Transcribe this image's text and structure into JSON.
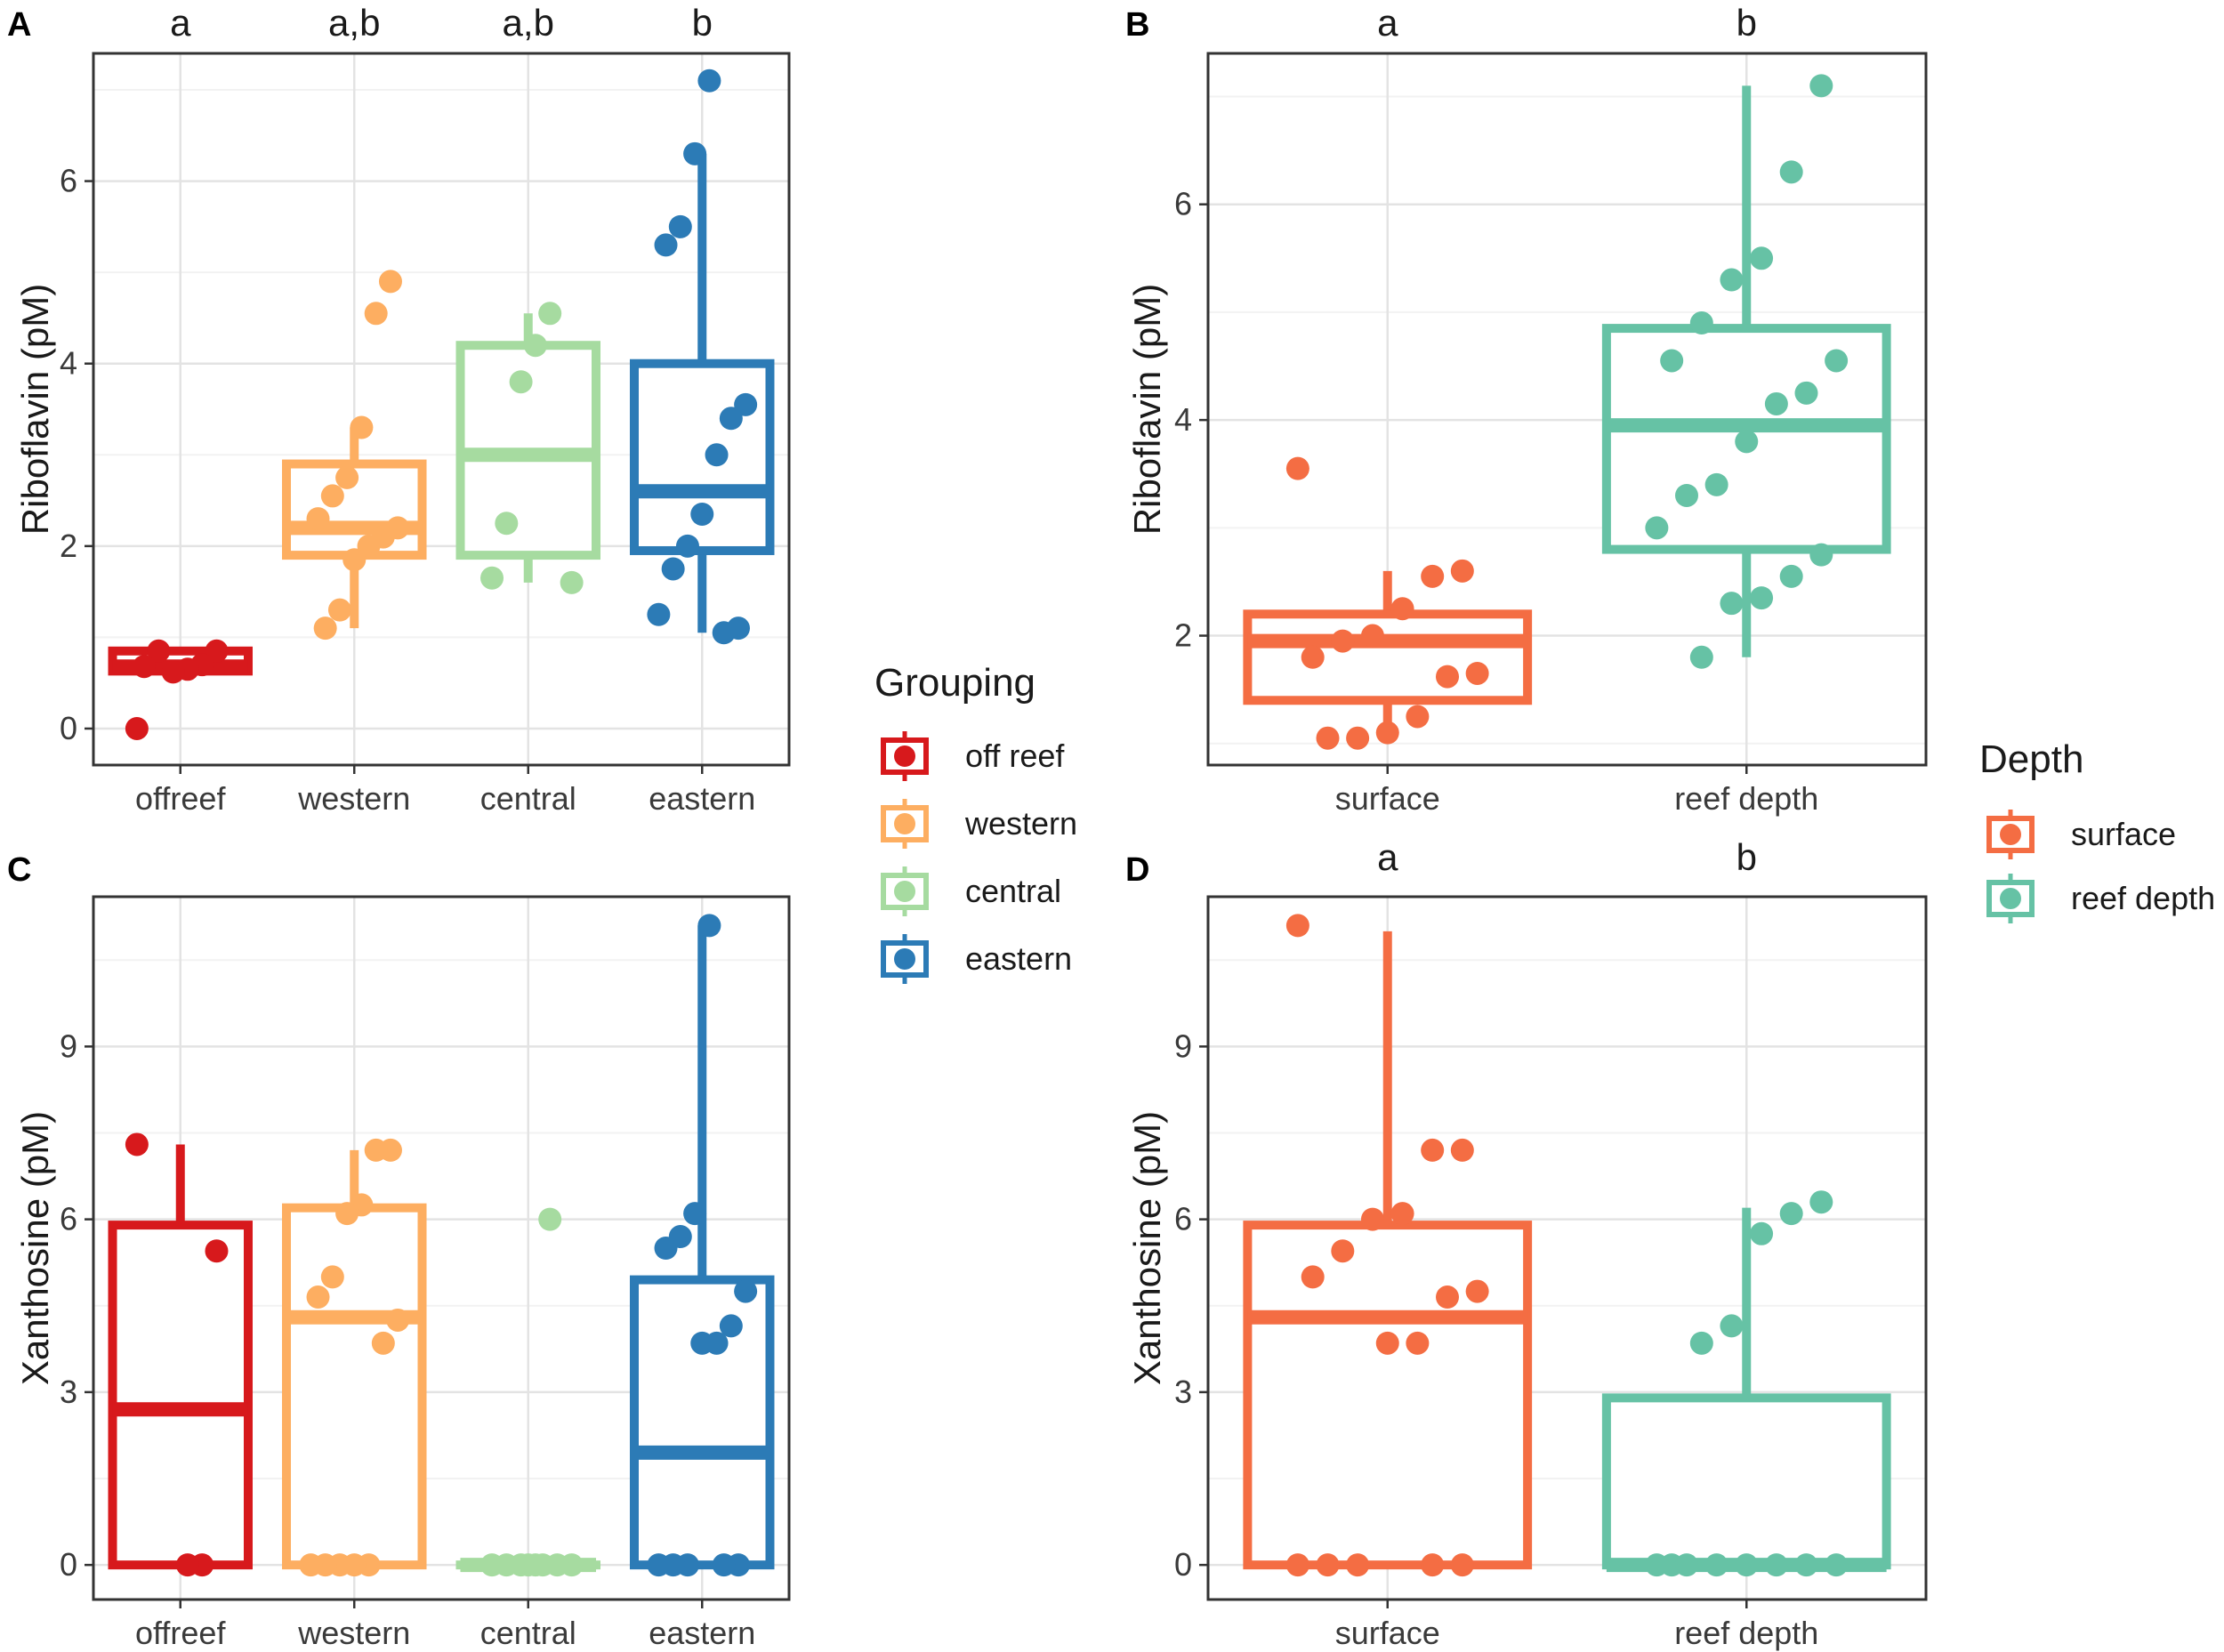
{
  "legends": {
    "grouping": {
      "title": "Grouping",
      "items": [
        {
          "label": "off reef",
          "color": "#d7191c"
        },
        {
          "label": "western",
          "color": "#fdae61"
        },
        {
          "label": "central",
          "color": "#a6dba0"
        },
        {
          "label": "eastern",
          "color": "#2c7bb6"
        }
      ]
    },
    "depth": {
      "title": "Depth",
      "items": [
        {
          "label": "surface",
          "color": "#f46d43"
        },
        {
          "label": "reef depth",
          "color": "#66c2a5"
        }
      ]
    }
  },
  "chart_data": [
    {
      "panel": "A",
      "type": "box",
      "ylabel": "Riboflavin (pM)",
      "ylim": [
        -0.4,
        7.4
      ],
      "yticks": [
        0,
        2,
        4,
        6
      ],
      "categories": [
        "offreef",
        "western",
        "central",
        "eastern"
      ],
      "colors": [
        "#d7191c",
        "#fdae61",
        "#a6dba0",
        "#2c7bb6"
      ],
      "sig_letters": [
        "a",
        "a,b",
        "a,b",
        "b"
      ],
      "boxes": [
        {
          "lw": 0.63,
          "q1": 0.63,
          "med": 0.68,
          "q3": 0.85,
          "uw": 0.85
        },
        {
          "lw": 1.1,
          "q1": 1.9,
          "med": 2.2,
          "q3": 2.9,
          "uw": 3.3
        },
        {
          "lw": 1.6,
          "q1": 1.9,
          "med": 3.0,
          "q3": 4.2,
          "uw": 4.55
        },
        {
          "lw": 1.05,
          "q1": 1.95,
          "med": 2.6,
          "q3": 4.0,
          "uw": 6.3
        }
      ],
      "points": [
        [
          0,
          0.85,
          0.7,
          0.65,
          0.62,
          0.85,
          0.68
        ],
        [
          4.9,
          4.55,
          3.3,
          2.75,
          2.55,
          2.3,
          2.2,
          2.1,
          2.0,
          1.85,
          1.3,
          1.1
        ],
        [
          4.55,
          4.2,
          3.8,
          2.25,
          1.65,
          1.6
        ],
        [
          7.1,
          6.3,
          5.5,
          5.3,
          3.55,
          3.4,
          3.0,
          2.35,
          2.0,
          1.75,
          1.25,
          1.1,
          1.05
        ]
      ]
    },
    {
      "panel": "B",
      "type": "box",
      "ylabel": "Riboflavin (pM)",
      "ylim": [
        0.8,
        7.4
      ],
      "yticks": [
        2,
        4,
        6
      ],
      "categories": [
        "surface",
        "reef depth"
      ],
      "colors": [
        "#f46d43",
        "#66c2a5"
      ],
      "sig_letters": [
        "a",
        "b"
      ],
      "boxes": [
        {
          "lw": 1.05,
          "q1": 1.4,
          "med": 1.95,
          "q3": 2.2,
          "uw": 2.6
        },
        {
          "lw": 1.8,
          "q1": 2.8,
          "med": 3.95,
          "q3": 4.85,
          "uw": 7.1
        }
      ],
      "points": [
        [
          3.55,
          2.6,
          2.55,
          2.25,
          2.0,
          1.95,
          1.8,
          1.65,
          1.62,
          1.25,
          1.1,
          1.05,
          1.05
        ],
        [
          7.1,
          6.3,
          5.5,
          5.3,
          4.9,
          4.55,
          4.55,
          4.25,
          4.15,
          3.8,
          3.4,
          3.3,
          3.0,
          2.75,
          2.55,
          2.35,
          2.3,
          1.8
        ]
      ]
    },
    {
      "panel": "C",
      "type": "box",
      "ylabel": "Xanthosine (pM)",
      "ylim": [
        -0.6,
        11.6
      ],
      "yticks": [
        0,
        3,
        6,
        9
      ],
      "categories": [
        "offreef",
        "western",
        "central",
        "eastern"
      ],
      "colors": [
        "#d7191c",
        "#fdae61",
        "#a6dba0",
        "#2c7bb6"
      ],
      "sig_letters": [],
      "boxes": [
        {
          "lw": 0,
          "q1": 0,
          "med": 2.7,
          "q3": 5.9,
          "uw": 7.3
        },
        {
          "lw": 0,
          "q1": 0,
          "med": 4.3,
          "q3": 6.2,
          "uw": 7.2
        },
        {
          "lw": 0,
          "q1": 0,
          "med": 0,
          "q3": 0,
          "uw": 0
        },
        {
          "lw": 0,
          "q1": 0,
          "med": 1.95,
          "q3": 4.95,
          "uw": 11.1
        }
      ],
      "points": [
        [
          7.3,
          5.45,
          0,
          0
        ],
        [
          7.2,
          7.2,
          6.25,
          6.1,
          5.0,
          4.65,
          4.25,
          3.85,
          0,
          0,
          0,
          0,
          0
        ],
        [
          6.0,
          0,
          0,
          0,
          0,
          0,
          0,
          0,
          0
        ],
        [
          11.1,
          6.1,
          5.7,
          5.5,
          4.75,
          4.15,
          3.85,
          3.85,
          0,
          0,
          0,
          0,
          0
        ]
      ]
    },
    {
      "panel": "D",
      "type": "box",
      "ylabel": "Xanthosine (pM)",
      "ylim": [
        -0.6,
        11.6
      ],
      "yticks": [
        0,
        3,
        6,
        9
      ],
      "categories": [
        "surface",
        "reef depth"
      ],
      "colors": [
        "#f46d43",
        "#66c2a5"
      ],
      "sig_letters": [
        "a",
        "b"
      ],
      "boxes": [
        {
          "lw": 0,
          "q1": 0,
          "med": 4.3,
          "q3": 5.9,
          "uw": 11.0
        },
        {
          "lw": 0,
          "q1": 0,
          "med": 0,
          "q3": 2.9,
          "uw": 6.2
        }
      ],
      "points": [
        [
          11.1,
          7.2,
          7.2,
          6.1,
          6.0,
          5.45,
          5.0,
          4.75,
          4.65,
          3.85,
          3.85,
          0,
          0,
          0,
          0,
          0
        ],
        [
          6.3,
          6.1,
          5.75,
          4.15,
          3.85,
          0,
          0,
          0,
          0,
          0,
          0,
          0,
          0
        ]
      ]
    }
  ]
}
